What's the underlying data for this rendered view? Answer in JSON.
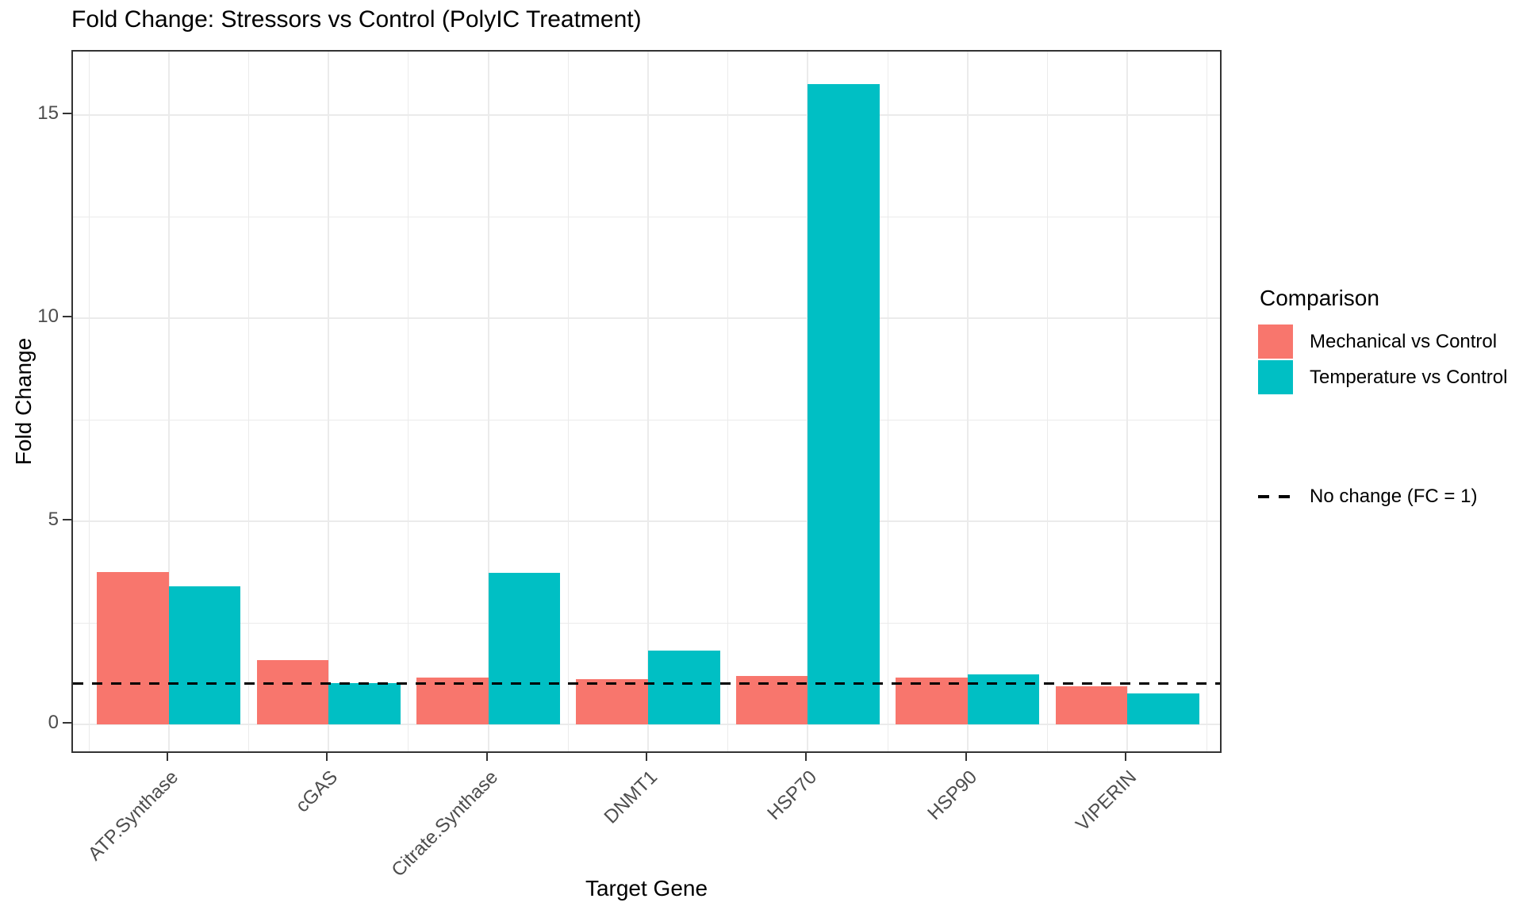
{
  "chart_data": {
    "type": "bar",
    "title": "Fold Change: Stressors vs Control (PolyIC Treatment)",
    "xlabel": "Target Gene",
    "ylabel": "Fold Change",
    "legend_title": "Comparison",
    "legend_position": "right",
    "grid": true,
    "categories": [
      "ATP.Synthase",
      "cGAS",
      "Citrate.Synthase",
      "DNMT1",
      "HSP70",
      "HSP90",
      "VIPERIN"
    ],
    "series": [
      {
        "name": "Mechanical vs Control",
        "color": "#F8766D",
        "values": [
          3.75,
          1.58,
          1.16,
          1.11,
          1.2,
          1.16,
          0.94
        ]
      },
      {
        "name": "Temperature vs Control",
        "color": "#00BFC4",
        "values": [
          3.39,
          1.02,
          3.73,
          1.82,
          15.77,
          1.24,
          0.77
        ]
      }
    ],
    "reference_line": {
      "value": 1,
      "label": "No change (FC = 1)",
      "style": "dashed",
      "color": "#000000"
    },
    "y_ticks": [
      0,
      5,
      10,
      15
    ],
    "y_minor_ticks": [
      2.5,
      7.5,
      12.5
    ],
    "ylim": [
      -0.74,
      16.56
    ]
  }
}
